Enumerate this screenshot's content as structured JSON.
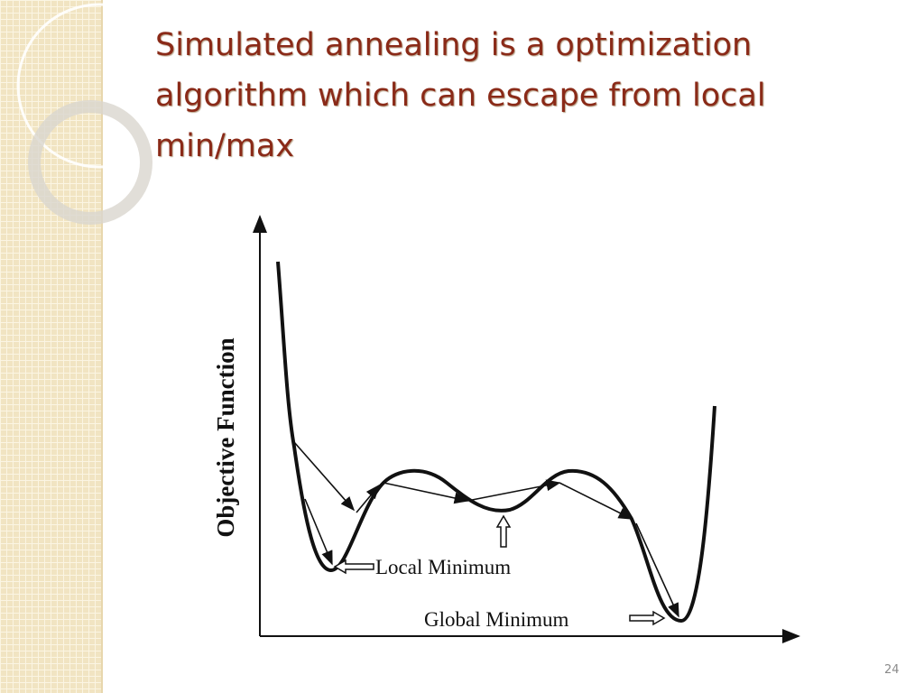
{
  "slide": {
    "title": "Simulated annealing is a optimization algorithm which can escape from local min/max",
    "figure": {
      "y_axis_label": "Objective Function",
      "annotations": [
        "Local Minimum",
        "Global Minimum"
      ]
    },
    "page_number": "24"
  }
}
